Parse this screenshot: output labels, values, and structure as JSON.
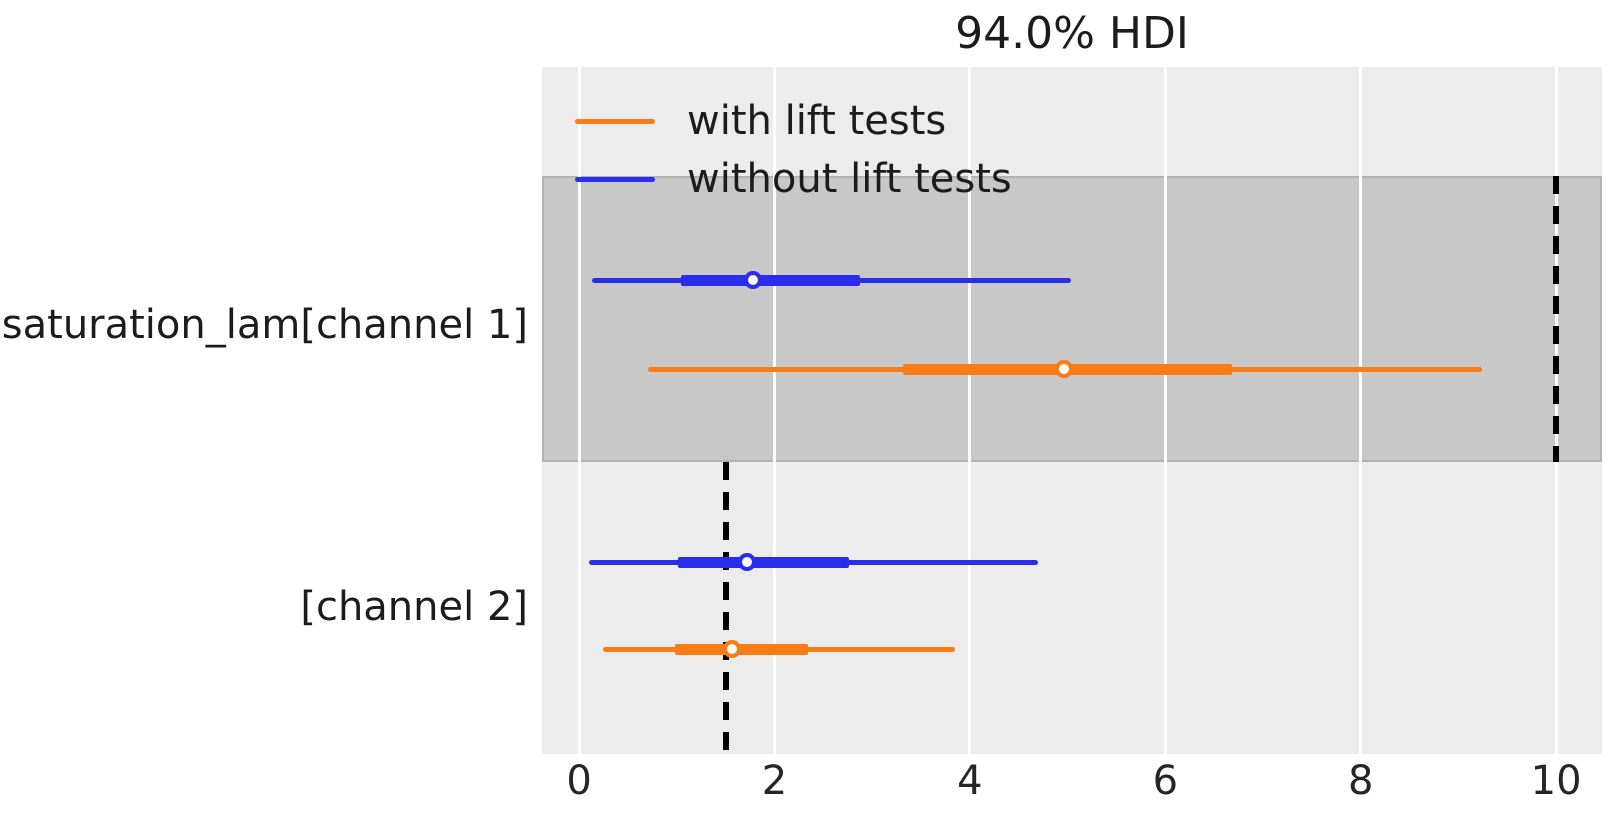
{
  "title": "94.0% HDI",
  "legend": {
    "items": [
      {
        "label": "with lift tests",
        "color": "#fa7c17"
      },
      {
        "label": "without lift tests",
        "color": "#2a2eec"
      }
    ]
  },
  "y_axis": {
    "labels": [
      {
        "label": "saturation_lam[channel 1]"
      },
      {
        "label": "[channel 2]"
      }
    ]
  },
  "x_axis": {
    "ticks": [
      {
        "value": 0,
        "label": "0"
      },
      {
        "value": 2,
        "label": "2"
      },
      {
        "value": 4,
        "label": "4"
      },
      {
        "value": 6,
        "label": "6"
      },
      {
        "value": 8,
        "label": "8"
      },
      {
        "value": 10,
        "label": "10"
      }
    ]
  },
  "colors": {
    "with_lift_tests": "#fa7c17",
    "without_lift_tests": "#2a2eec",
    "plot_background": "#ececec",
    "shaded_band": "#d4d4d4",
    "gridline": "#ffffff",
    "reference_line": "#000000",
    "text": "#1c1c1c"
  },
  "chart_data": {
    "type": "forest",
    "title": "94.0% HDI",
    "hdi_prob": 0.94,
    "parameters": [
      "saturation_lam[channel 1]",
      "saturation_lam[channel 2]"
    ],
    "xlim": [
      -0.38,
      10.47
    ],
    "grid": true,
    "legend_position": "upper left",
    "series": [
      {
        "name": "with lift tests",
        "color": "#fa7c17",
        "estimates": [
          {
            "parameter": "saturation_lam[channel 1]",
            "hdi_94_lower": 0.7,
            "hdi_94_upper": 9.24,
            "thick_lower": 3.32,
            "thick_upper": 6.68,
            "median": 4.96
          },
          {
            "parameter": "saturation_lam[channel 2]",
            "hdi_94_lower": 0.24,
            "hdi_94_upper": 3.85,
            "thick_lower": 0.98,
            "thick_upper": 2.34,
            "median": 1.56
          }
        ]
      },
      {
        "name": "without lift tests",
        "color": "#2a2eec",
        "estimates": [
          {
            "parameter": "saturation_lam[channel 1]",
            "hdi_94_lower": 0.13,
            "hdi_94_upper": 5.03,
            "thick_lower": 1.04,
            "thick_upper": 2.87,
            "median": 1.78
          },
          {
            "parameter": "saturation_lam[channel 2]",
            "hdi_94_lower": 0.1,
            "hdi_94_upper": 4.7,
            "thick_lower": 1.01,
            "thick_upper": 2.76,
            "median": 1.72
          }
        ]
      }
    ],
    "reference_lines": [
      {
        "parameter": "saturation_lam[channel 1]",
        "x": 10.0,
        "style": "dashed"
      },
      {
        "parameter": "saturation_lam[channel 2]",
        "x": 1.5,
        "style": "dashed"
      }
    ],
    "shaded_rows": [
      "saturation_lam[channel 1]"
    ]
  }
}
